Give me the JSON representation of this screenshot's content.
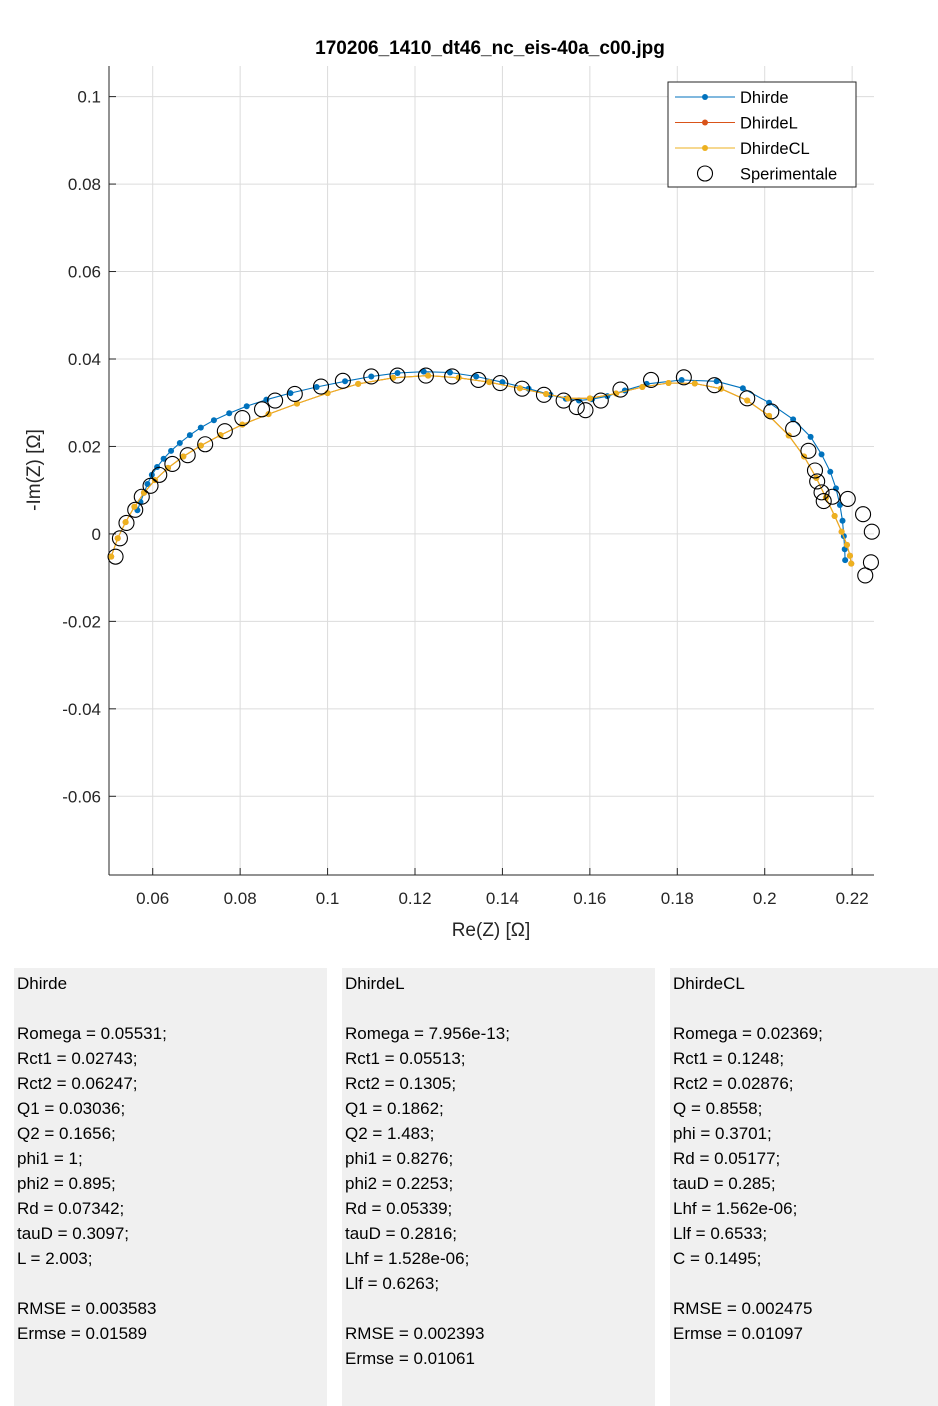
{
  "chart_data": {
    "type": "scatter",
    "title": "170206_1410_dt46_nc_eis-40a_c00.jpg",
    "xlabel": "Re(Z) [Ω]",
    "ylabel": "-Im(Z) [Ω]",
    "xlim": [
      0.05,
      0.225
    ],
    "ylim": [
      -0.078,
      0.107
    ],
    "xticks": [
      0.06,
      0.08,
      0.1,
      0.12,
      0.14,
      0.16,
      0.18,
      0.2,
      0.22
    ],
    "xtick_labels": [
      "0.06",
      "0.08",
      "0.1",
      "0.12",
      "0.14",
      "0.16",
      "0.18",
      "0.2",
      "0.22"
    ],
    "yticks": [
      0.1,
      0.08,
      0.06,
      0.04,
      0.02,
      0,
      -0.02,
      -0.04,
      -0.06
    ],
    "ytick_labels": [
      "0.1",
      "0.08",
      "0.06",
      "0.04",
      "0.02",
      "0",
      "-0.02",
      "-0.04",
      "-0.06"
    ],
    "grid": true,
    "legend_position": "top-right",
    "series": [
      {
        "name": "Dhirde",
        "color": "#0072BD",
        "style": "line-dot",
        "points": [
          [
            0.0565,
            0.0054
          ],
          [
            0.0572,
            0.0073
          ],
          [
            0.058,
            0.0094
          ],
          [
            0.0588,
            0.0114
          ],
          [
            0.0598,
            0.0135
          ],
          [
            0.061,
            0.0153
          ],
          [
            0.0625,
            0.0172
          ],
          [
            0.0642,
            0.019
          ],
          [
            0.0662,
            0.0208
          ],
          [
            0.0685,
            0.0226
          ],
          [
            0.071,
            0.0243
          ],
          [
            0.074,
            0.026
          ],
          [
            0.0775,
            0.0276
          ],
          [
            0.0815,
            0.0292
          ],
          [
            0.086,
            0.0307
          ],
          [
            0.0915,
            0.0322
          ],
          [
            0.0975,
            0.0336
          ],
          [
            0.104,
            0.0349
          ],
          [
            0.11,
            0.036
          ],
          [
            0.116,
            0.0368
          ],
          [
            0.122,
            0.0371
          ],
          [
            0.128,
            0.0369
          ],
          [
            0.134,
            0.036
          ],
          [
            0.14,
            0.0347
          ],
          [
            0.146,
            0.0332
          ],
          [
            0.151,
            0.0318
          ],
          [
            0.1545,
            0.0309
          ],
          [
            0.1575,
            0.0305
          ],
          [
            0.1605,
            0.0308
          ],
          [
            0.164,
            0.0315
          ],
          [
            0.168,
            0.0328
          ],
          [
            0.173,
            0.0343
          ],
          [
            0.181,
            0.0352
          ],
          [
            0.189,
            0.0349
          ],
          [
            0.195,
            0.0333
          ],
          [
            0.201,
            0.03
          ],
          [
            0.2065,
            0.0262
          ],
          [
            0.2105,
            0.0222
          ],
          [
            0.213,
            0.0182
          ],
          [
            0.215,
            0.0142
          ],
          [
            0.2163,
            0.0104
          ],
          [
            0.2172,
            0.0066
          ],
          [
            0.2178,
            0.003
          ],
          [
            0.2181,
            -0.0005
          ],
          [
            0.2183,
            -0.0035
          ],
          [
            0.2184,
            -0.006
          ]
        ]
      },
      {
        "name": "DhirdeL",
        "color": "#D95319",
        "style": "line-dot",
        "points": [
          [
            0.0505,
            -0.0052
          ],
          [
            0.052,
            -0.001
          ],
          [
            0.0538,
            0.0027
          ],
          [
            0.0558,
            0.0062
          ],
          [
            0.058,
            0.0094
          ],
          [
            0.0605,
            0.0123
          ],
          [
            0.0635,
            0.0151
          ],
          [
            0.067,
            0.0177
          ],
          [
            0.071,
            0.0202
          ],
          [
            0.0755,
            0.0226
          ],
          [
            0.0805,
            0.025
          ],
          [
            0.0865,
            0.0274
          ],
          [
            0.093,
            0.0298
          ],
          [
            0.1,
            0.0322
          ],
          [
            0.107,
            0.0343
          ],
          [
            0.115,
            0.0357
          ],
          [
            0.123,
            0.0362
          ],
          [
            0.13,
            0.0357
          ],
          [
            0.137,
            0.0347
          ],
          [
            0.144,
            0.0333
          ],
          [
            0.15,
            0.032
          ],
          [
            0.155,
            0.031
          ],
          [
            0.16,
            0.031
          ],
          [
            0.166,
            0.0321
          ],
          [
            0.172,
            0.0336
          ],
          [
            0.178,
            0.0345
          ],
          [
            0.184,
            0.0344
          ],
          [
            0.19,
            0.0332
          ],
          [
            0.196,
            0.0305
          ],
          [
            0.201,
            0.027
          ],
          [
            0.2055,
            0.0225
          ],
          [
            0.209,
            0.0177
          ],
          [
            0.2118,
            0.0128
          ],
          [
            0.214,
            0.0083
          ],
          [
            0.216,
            0.0041
          ],
          [
            0.2176,
            0.0005
          ],
          [
            0.2188,
            -0.0025
          ],
          [
            0.2195,
            -0.005
          ],
          [
            0.2198,
            -0.0068
          ]
        ]
      },
      {
        "name": "DhirdeCL",
        "color": "#EDB120",
        "style": "line-dot",
        "points": [
          [
            0.0505,
            -0.0052
          ],
          [
            0.052,
            -0.001
          ],
          [
            0.0538,
            0.0027
          ],
          [
            0.0558,
            0.0062
          ],
          [
            0.058,
            0.0094
          ],
          [
            0.0605,
            0.0123
          ],
          [
            0.0635,
            0.0151
          ],
          [
            0.067,
            0.0177
          ],
          [
            0.071,
            0.0202
          ],
          [
            0.0755,
            0.0226
          ],
          [
            0.0805,
            0.025
          ],
          [
            0.0865,
            0.0274
          ],
          [
            0.093,
            0.0298
          ],
          [
            0.1,
            0.0322
          ],
          [
            0.107,
            0.0343
          ],
          [
            0.115,
            0.0357
          ],
          [
            0.123,
            0.0362
          ],
          [
            0.13,
            0.0357
          ],
          [
            0.137,
            0.0347
          ],
          [
            0.144,
            0.0333
          ],
          [
            0.15,
            0.032
          ],
          [
            0.155,
            0.031
          ],
          [
            0.16,
            0.031
          ],
          [
            0.166,
            0.0321
          ],
          [
            0.172,
            0.0336
          ],
          [
            0.178,
            0.0345
          ],
          [
            0.184,
            0.0344
          ],
          [
            0.19,
            0.0332
          ],
          [
            0.196,
            0.0305
          ],
          [
            0.201,
            0.027
          ],
          [
            0.2055,
            0.0225
          ],
          [
            0.209,
            0.0177
          ],
          [
            0.2118,
            0.0128
          ],
          [
            0.214,
            0.0083
          ],
          [
            0.216,
            0.0041
          ],
          [
            0.2176,
            0.0005
          ],
          [
            0.2188,
            -0.0025
          ],
          [
            0.2195,
            -0.005
          ],
          [
            0.2198,
            -0.0068
          ]
        ]
      },
      {
        "name": "Sperimentale",
        "color": "#000000",
        "style": "open-circle",
        "points": [
          [
            0.0515,
            -0.0052
          ],
          [
            0.0525,
            -0.001
          ],
          [
            0.054,
            0.0025
          ],
          [
            0.056,
            0.0055
          ],
          [
            0.0575,
            0.0085
          ],
          [
            0.0595,
            0.011
          ],
          [
            0.0615,
            0.0135
          ],
          [
            0.0645,
            0.016
          ],
          [
            0.068,
            0.018
          ],
          [
            0.072,
            0.0205
          ],
          [
            0.0765,
            0.0235
          ],
          [
            0.0805,
            0.0265
          ],
          [
            0.085,
            0.0285
          ],
          [
            0.088,
            0.0305
          ],
          [
            0.0925,
            0.032
          ],
          [
            0.0985,
            0.0337
          ],
          [
            0.1035,
            0.035
          ],
          [
            0.11,
            0.036
          ],
          [
            0.116,
            0.0362
          ],
          [
            0.1225,
            0.0362
          ],
          [
            0.1285,
            0.036
          ],
          [
            0.1345,
            0.0352
          ],
          [
            0.1395,
            0.0345
          ],
          [
            0.1445,
            0.0332
          ],
          [
            0.1495,
            0.0318
          ],
          [
            0.154,
            0.0305
          ],
          [
            0.157,
            0.029
          ],
          [
            0.159,
            0.0283
          ],
          [
            0.1625,
            0.0305
          ],
          [
            0.167,
            0.033
          ],
          [
            0.174,
            0.0352
          ],
          [
            0.1815,
            0.0358
          ],
          [
            0.1885,
            0.034
          ],
          [
            0.196,
            0.031
          ],
          [
            0.2015,
            0.028
          ],
          [
            0.2065,
            0.024
          ],
          [
            0.21,
            0.019
          ],
          [
            0.2115,
            0.0145
          ],
          [
            0.212,
            0.012
          ],
          [
            0.213,
            0.0095
          ],
          [
            0.2135,
            0.0075
          ],
          [
            0.2155,
            0.0085
          ],
          [
            0.219,
            0.008
          ],
          [
            0.2225,
            0.0045
          ],
          [
            0.2245,
            0.0005
          ],
          [
            0.2243,
            -0.0065
          ],
          [
            0.223,
            -0.0095
          ]
        ]
      }
    ]
  },
  "panels": [
    {
      "title": "Dhirde",
      "params": [
        "Romega = 0.05531;",
        "Rct1 = 0.02743;",
        "Rct2 = 0.06247;",
        "Q1 = 0.03036;",
        "Q2 = 0.1656;",
        "phi1 = 1;",
        "phi2 = 0.895;",
        "Rd = 0.07342;",
        "tauD = 0.3097;",
        "L = 2.003;"
      ],
      "rmse": "RMSE = 0.003583",
      "ermse": "Ermse = 0.01589"
    },
    {
      "title": "DhirdeL",
      "params": [
        "Romega = 7.956e-13;",
        "Rct1 = 0.05513;",
        "Rct2 = 0.1305;",
        "Q1 = 0.1862;",
        "Q2 = 1.483;",
        "phi1 = 0.8276;",
        "phi2 = 0.2253;",
        "Rd = 0.05339;",
        "tauD = 0.2816;",
        "Lhf = 1.528e-06;",
        "Llf = 0.6263;"
      ],
      "rmse": "RMSE = 0.002393",
      "ermse": "Ermse = 0.01061"
    },
    {
      "title": "DhirdeCL",
      "params": [
        "Romega = 0.02369;",
        "Rct1 = 0.1248;",
        "Rct2 = 0.02876;",
        "Q = 0.8558;",
        "phi = 0.3701;",
        "Rd = 0.05177;",
        "tauD = 0.285;",
        "Lhf = 1.562e-06;",
        "Llf = 0.6533;",
        "C = 0.1495;"
      ],
      "rmse": "RMSE = 0.002475",
      "ermse": "Ermse = 0.01097"
    }
  ]
}
